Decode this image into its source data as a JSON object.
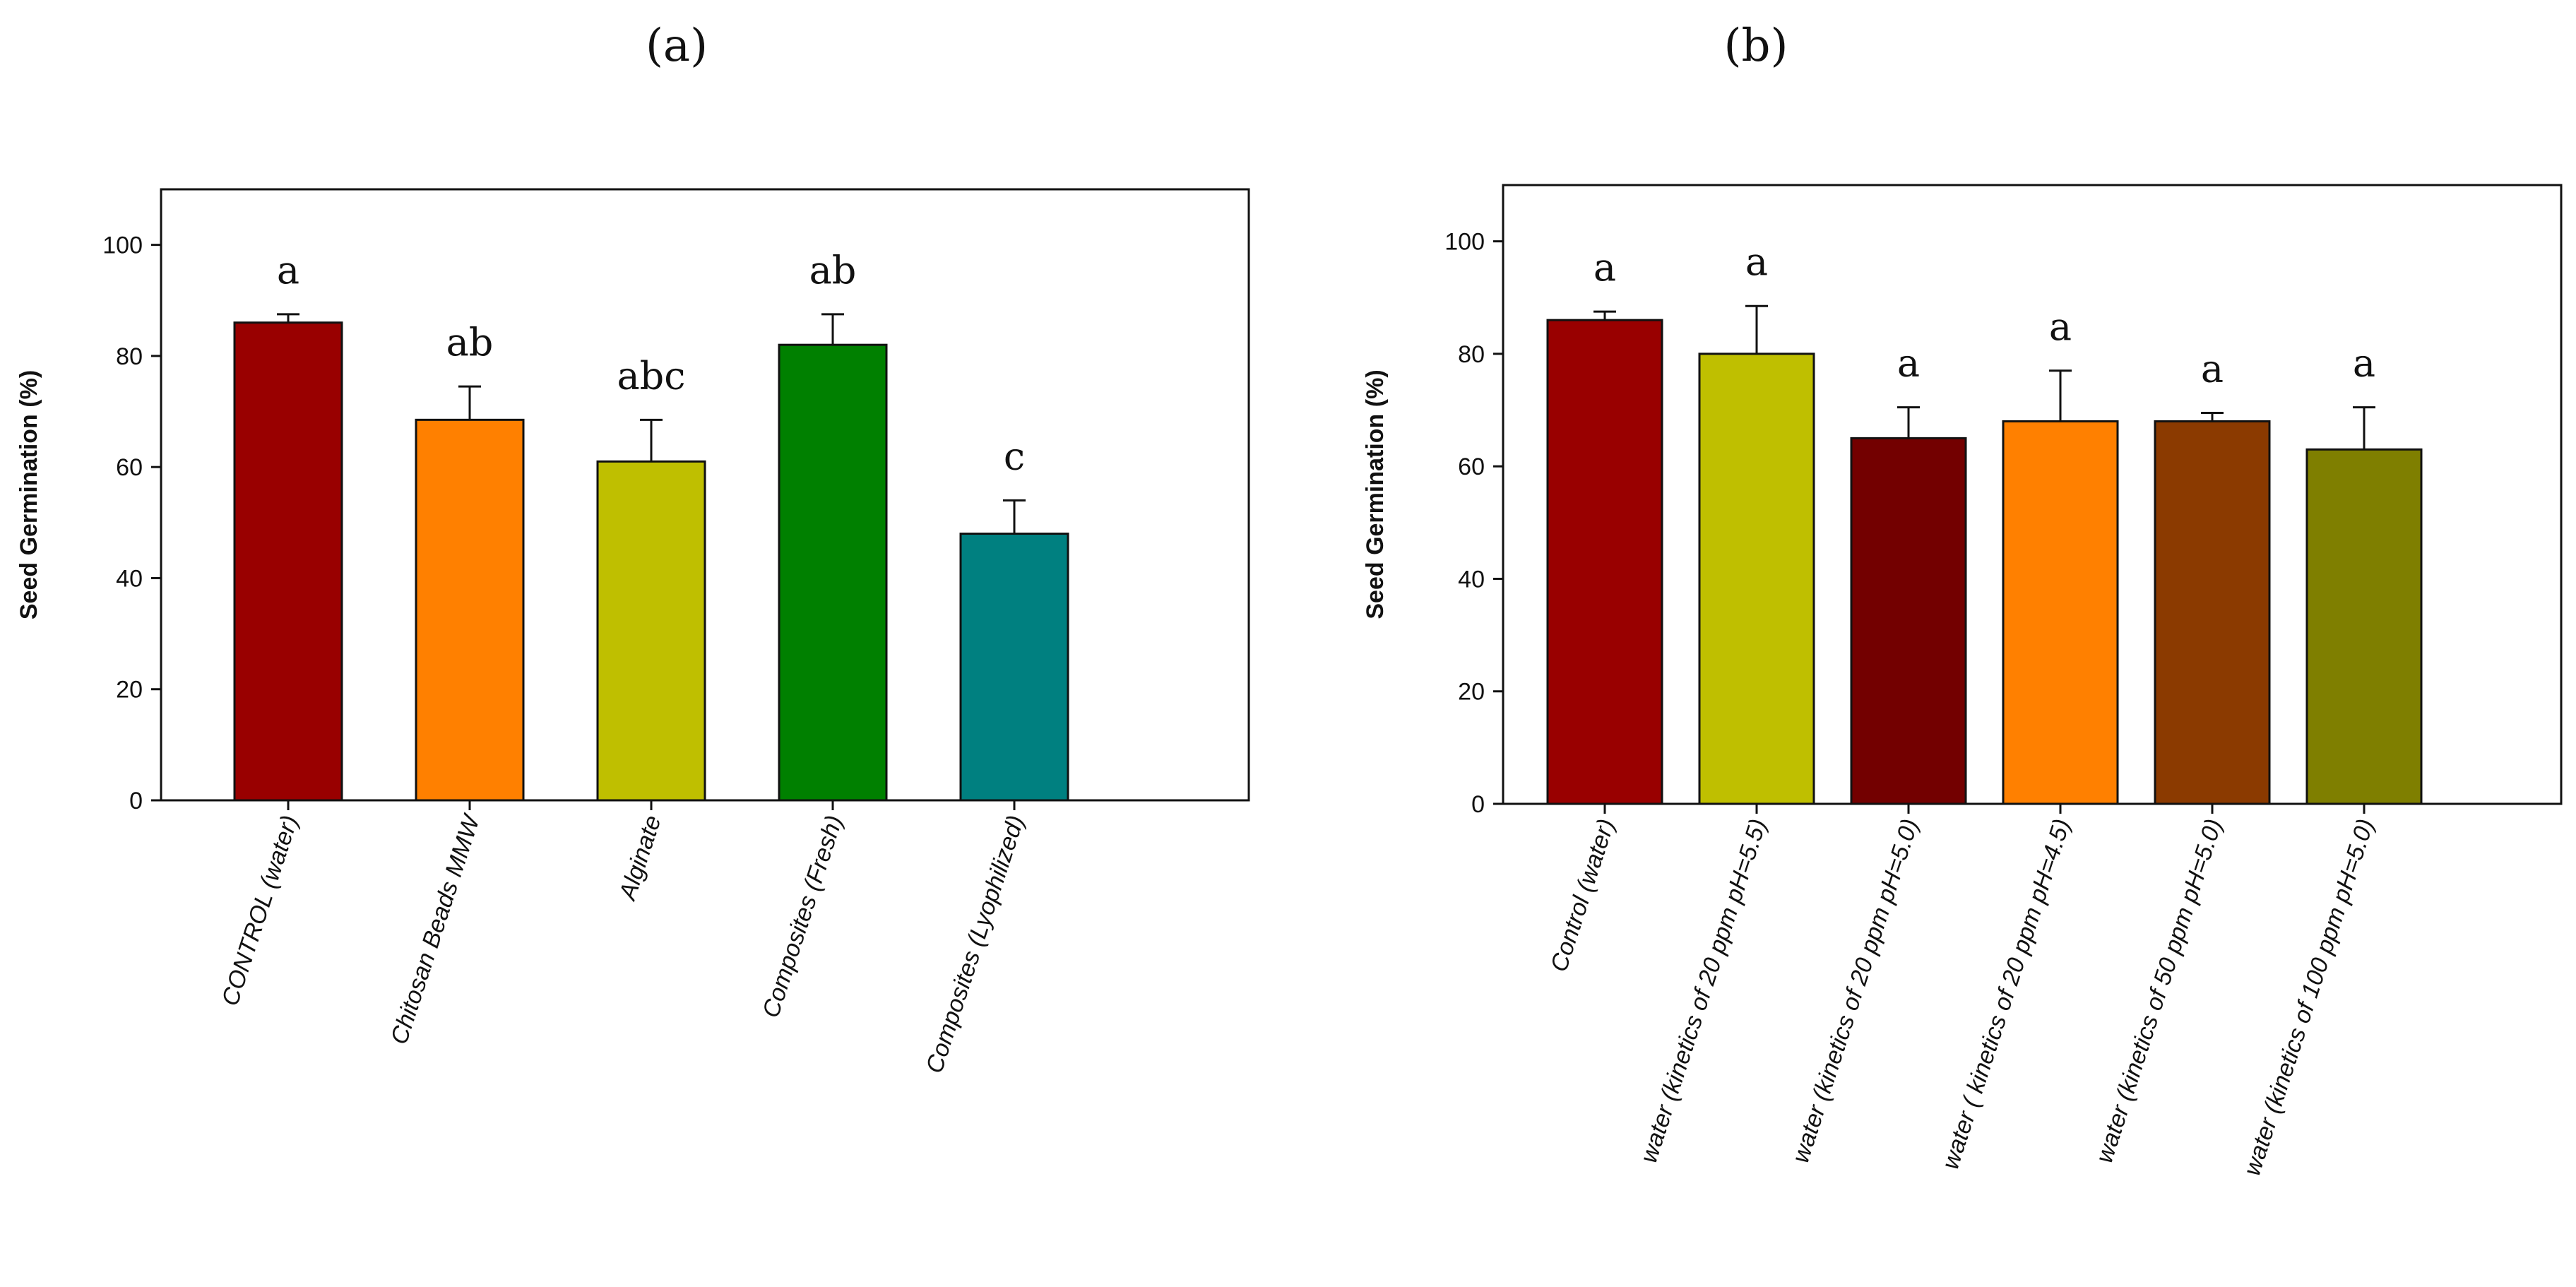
{
  "figure": {
    "labels": [
      "(a)",
      "(b)"
    ]
  },
  "chart_data": [
    {
      "type": "bar",
      "panel": "(a)",
      "ylabel": "Seed Germination (%)",
      "ylim": [
        0,
        110
      ],
      "yticks": [
        0,
        20,
        40,
        60,
        80,
        100
      ],
      "categories": [
        "CONTROL (water)",
        "Chitosan Beads MMW",
        "Alginate",
        "Composites (Fresh)",
        "Composites (Lyophilized)"
      ],
      "values": [
        86,
        68.5,
        61,
        82,
        48
      ],
      "errors": [
        1.5,
        6,
        7.5,
        5.5,
        6
      ],
      "colors": [
        "#990000",
        "#ff8000",
        "#bfbf00",
        "#008000",
        "#008080"
      ],
      "significance": [
        "a",
        "ab",
        "abc",
        "ab",
        "c"
      ]
    },
    {
      "type": "bar",
      "panel": "(b)",
      "ylabel": "Seed Germination (%)",
      "ylim": [
        0,
        110
      ],
      "yticks": [
        0,
        20,
        40,
        60,
        80,
        100
      ],
      "categories": [
        "Control (water)",
        "water (kinetics of 20 ppm pH=5.5)",
        "water (kinetics of 20 ppm pH=5.0)",
        "water ( kinetics of 20 ppm pH=4.5)",
        "water (kinetics of 50 ppm pH=5.0)",
        "water (kinetics of 100 ppm pH=5.0)"
      ],
      "values": [
        86,
        80,
        65,
        68,
        68,
        63
      ],
      "errors": [
        1.5,
        8.5,
        5.5,
        9,
        1.5,
        7.5
      ],
      "colors": [
        "#990000",
        "#bfbf00",
        "#730000",
        "#ff8000",
        "#8b3a00",
        "#7f7f00"
      ],
      "significance": [
        "a",
        "a",
        "a",
        "a",
        "a",
        "a"
      ]
    }
  ]
}
